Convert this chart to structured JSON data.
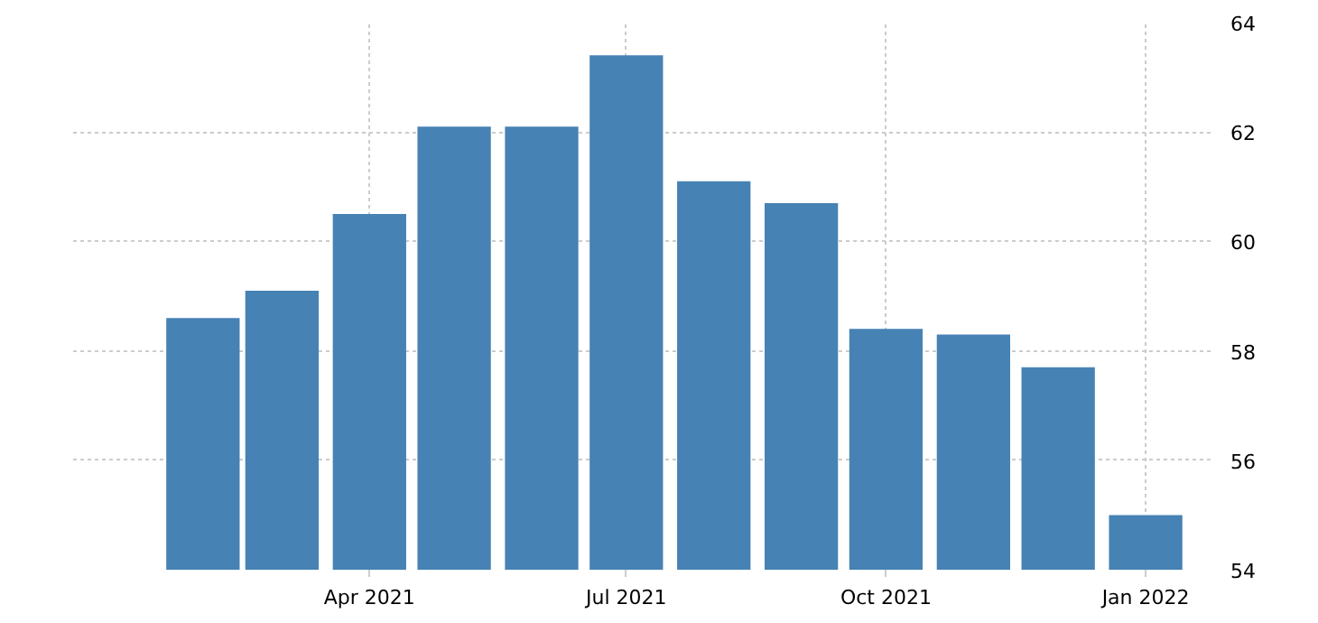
{
  "chart_data": {
    "type": "bar",
    "x": [
      "2021-02",
      "2021-03",
      "2021-04",
      "2021-05",
      "2021-06",
      "2021-07",
      "2021-08",
      "2021-09",
      "2021-10",
      "2021-11",
      "2021-12",
      "2022-01"
    ],
    "values": [
      58.6,
      59.1,
      60.5,
      62.1,
      62.1,
      63.4,
      61.1,
      60.7,
      58.4,
      58.3,
      57.7,
      55.0
    ],
    "color": "#4682b4",
    "xlim": [
      "2020-12-17",
      "2022-01-24"
    ],
    "xticks": [
      {
        "value": "2021-04",
        "label": "Apr 2021"
      },
      {
        "value": "2021-07",
        "label": "Jul 2021"
      },
      {
        "value": "2021-10",
        "label": "Oct 2021"
      },
      {
        "value": "2022-01",
        "label": "Jan 2022"
      }
    ],
    "ylim": [
      54,
      64
    ],
    "yticks": [
      54,
      56,
      58,
      60,
      62,
      64
    ],
    "grid": true
  }
}
